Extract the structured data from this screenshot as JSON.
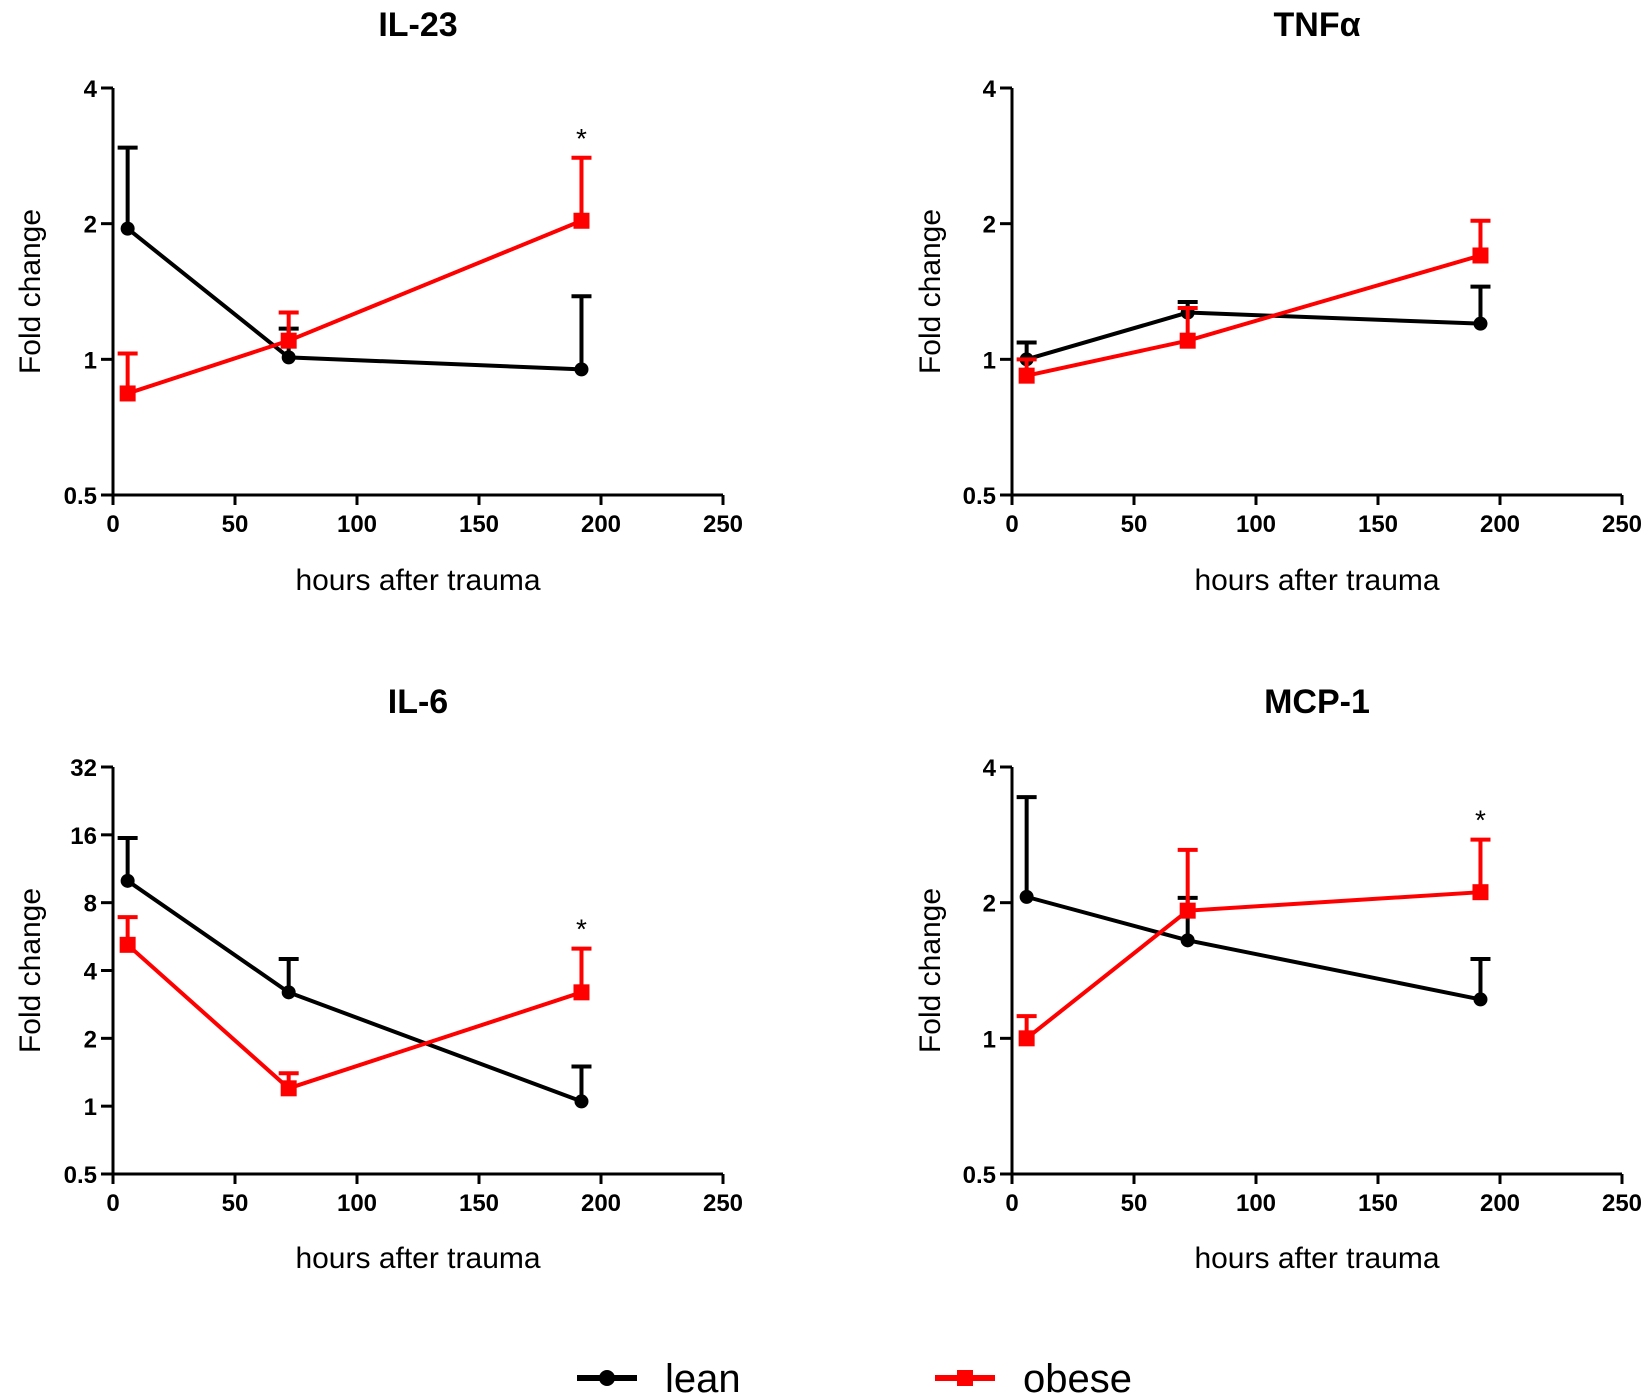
{
  "chart_data": [
    {
      "type": "line",
      "title": "IL-23",
      "xlabel": "hours after trauma",
      "ylabel": "Fold change",
      "xlim": [
        0,
        250
      ],
      "xticks": [
        0,
        50,
        100,
        150,
        200,
        250
      ],
      "ylim": [
        0.5,
        4
      ],
      "yscale": "log2",
      "yticks": [
        0.5,
        1,
        2,
        4
      ],
      "series": [
        {
          "name": "lean",
          "color": "#000000",
          "marker": "circle",
          "x": [
            6,
            72,
            192
          ],
          "y": [
            1.95,
            1.01,
            0.95
          ],
          "err_upper": [
            2.95,
            1.17,
            1.38
          ]
        },
        {
          "name": "obese",
          "color": "#ff0000",
          "marker": "square",
          "x": [
            6,
            72,
            192
          ],
          "y": [
            0.84,
            1.1,
            2.03
          ],
          "err_upper": [
            1.03,
            1.27,
            2.8
          ]
        }
      ],
      "annotations": [
        {
          "x": 192,
          "text": "*",
          "series": "obese"
        }
      ]
    },
    {
      "type": "line",
      "title": "TNFα",
      "xlabel": "hours after trauma",
      "ylabel": "Fold change",
      "xlim": [
        0,
        250
      ],
      "xticks": [
        0,
        50,
        100,
        150,
        200,
        250
      ],
      "ylim": [
        0.5,
        4
      ],
      "yscale": "log2",
      "yticks": [
        0.5,
        1,
        2,
        4
      ],
      "series": [
        {
          "name": "lean",
          "color": "#000000",
          "marker": "circle",
          "x": [
            6,
            72,
            192
          ],
          "y": [
            1.0,
            1.27,
            1.2
          ],
          "err_upper": [
            1.09,
            1.34,
            1.45
          ]
        },
        {
          "name": "obese",
          "color": "#ff0000",
          "marker": "square",
          "x": [
            6,
            72,
            192
          ],
          "y": [
            0.92,
            1.1,
            1.7
          ],
          "err_upper": [
            1.0,
            1.3,
            2.03
          ]
        }
      ],
      "annotations": []
    },
    {
      "type": "line",
      "title": "IL-6",
      "xlabel": "hours after trauma",
      "ylabel": "Fold change",
      "xlim": [
        0,
        250
      ],
      "xticks": [
        0,
        50,
        100,
        150,
        200,
        250
      ],
      "ylim": [
        0.5,
        32
      ],
      "yscale": "log2",
      "yticks": [
        0.5,
        1,
        2,
        4,
        8,
        16,
        32
      ],
      "series": [
        {
          "name": "lean",
          "color": "#000000",
          "marker": "circle",
          "x": [
            6,
            72,
            192
          ],
          "y": [
            10.0,
            3.2,
            1.05
          ],
          "err_upper": [
            15.5,
            4.5,
            1.5
          ]
        },
        {
          "name": "obese",
          "color": "#ff0000",
          "marker": "square",
          "x": [
            6,
            72,
            192
          ],
          "y": [
            5.2,
            1.2,
            3.2
          ],
          "err_upper": [
            6.9,
            1.4,
            5.0
          ]
        }
      ],
      "annotations": [
        {
          "x": 192,
          "text": "*",
          "series": "obese"
        }
      ]
    },
    {
      "type": "line",
      "title": "MCP-1",
      "xlabel": "hours after trauma",
      "ylabel": "Fold change",
      "xlim": [
        0,
        250
      ],
      "xticks": [
        0,
        50,
        100,
        150,
        200,
        250
      ],
      "ylim": [
        0.5,
        4
      ],
      "yscale": "log2",
      "yticks": [
        0.5,
        1,
        2,
        4
      ],
      "series": [
        {
          "name": "lean",
          "color": "#000000",
          "marker": "circle",
          "x": [
            6,
            72,
            192
          ],
          "y": [
            2.06,
            1.65,
            1.22
          ],
          "err_upper": [
            3.43,
            2.05,
            1.5
          ]
        },
        {
          "name": "obese",
          "color": "#ff0000",
          "marker": "square",
          "x": [
            6,
            72,
            192
          ],
          "y": [
            1.0,
            1.92,
            2.11
          ],
          "err_upper": [
            1.12,
            2.62,
            2.76
          ]
        }
      ],
      "annotations": [
        {
          "x": 192,
          "text": "*",
          "series": "obese"
        }
      ]
    }
  ],
  "legend": [
    {
      "label": "lean",
      "color": "#000000",
      "marker": "circle"
    },
    {
      "label": "obese",
      "color": "#ff0000",
      "marker": "square"
    }
  ]
}
